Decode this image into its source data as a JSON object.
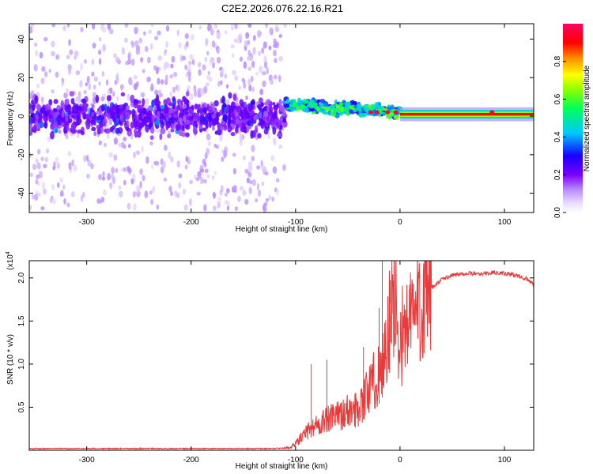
{
  "title": "C2E2.2026.076.22.16.R21",
  "colors": {
    "line": "#e83a3a",
    "axis": "#000000",
    "background": "#ffffff"
  },
  "chart_data": [
    {
      "type": "heatmap",
      "name": "spectrogram",
      "xlabel": "Height of straight line (km)",
      "ylabel": "Frequency (Hz)",
      "xlim": [
        -355,
        128
      ],
      "ylim": [
        -50,
        48
      ],
      "x_ticks": [
        -300,
        -200,
        -100,
        0,
        100
      ],
      "x_tick_labels": [
        "-300",
        "-200",
        "-100",
        "0",
        "100"
      ],
      "y_ticks": [
        -40,
        -20,
        0,
        20,
        40
      ],
      "y_tick_labels": [
        "-40",
        "-20",
        "0",
        "20",
        "40"
      ],
      "colorbar": {
        "label": "Normalized spectral amplitude",
        "range": [
          0,
          1
        ],
        "ticks": [
          0.0,
          0.2,
          0.4,
          0.6,
          0.8
        ],
        "tick_labels": [
          "0.0",
          "0.2",
          "0.4",
          "0.6",
          "0.8"
        ],
        "colormap": "rainbow (white-violet-blue-cyan-green-yellow-orange-red-magenta)"
      },
      "features": [
        {
          "region": "noise",
          "x_range": [
            -355,
            -130
          ],
          "freq_spread_hz": [
            -48,
            48
          ],
          "amplitude": 0.05
        },
        {
          "region": "main band",
          "x_range": [
            -355,
            -110
          ],
          "freq_center_hz": 0,
          "freq_halfwidth_hz": 12,
          "amplitude": 0.2
        },
        {
          "region": "transition",
          "x_range": [
            -110,
            0
          ],
          "freq_center_hz": 2,
          "freq_halfwidth_hz": 5,
          "amplitude": 0.45
        },
        {
          "region": "carrier",
          "x_range": [
            0,
            128
          ],
          "freq_center_hz": 1,
          "freq_halfwidth_hz": 1.5,
          "amplitude": 0.9
        }
      ]
    },
    {
      "type": "line",
      "name": "snr",
      "xlabel": "Height of straight line (km)",
      "ylabel": "SNR (10 * v/v)",
      "y_exponent_label": "(x10",
      "y_exponent": "4",
      "xlim": [
        -355,
        128
      ],
      "ylim": [
        0,
        2.2
      ],
      "x_ticks": [
        -300,
        -200,
        -100,
        0,
        100
      ],
      "x_tick_labels": [
        "-300",
        "-200",
        "-100",
        "0",
        "100"
      ],
      "y_ticks": [
        0.5,
        1.0,
        1.5,
        2.0
      ],
      "y_tick_labels": [
        "0.5",
        "1.0",
        "1.5",
        "2.0"
      ],
      "series": [
        {
          "name": "SNR",
          "x": [
            -355,
            -300,
            -250,
            -200,
            -150,
            -120,
            -105,
            -100,
            -90,
            -80,
            -70,
            -60,
            -50,
            -45,
            -40,
            -35,
            -30,
            -25,
            -20,
            -15,
            -12,
            -10,
            -5,
            0,
            10,
            20,
            30,
            40,
            50,
            60,
            70,
            80,
            90,
            100,
            110,
            120,
            128
          ],
          "y": [
            0.02,
            0.02,
            0.02,
            0.02,
            0.02,
            0.02,
            0.03,
            0.08,
            0.2,
            0.3,
            0.35,
            0.4,
            0.45,
            0.45,
            0.5,
            0.6,
            0.7,
            0.8,
            0.9,
            1.1,
            1.3,
            1.5,
            1.7,
            1.3,
            1.5,
            1.75,
            1.88,
            1.98,
            2.03,
            2.05,
            2.05,
            2.05,
            2.06,
            2.05,
            2.03,
            2.0,
            1.92
          ],
          "spikes": [
            {
              "x": -85,
              "y": 1.0
            },
            {
              "x": -70,
              "y": 1.05
            },
            {
              "x": -35,
              "y": 1.2
            },
            {
              "x": -20,
              "y": 1.65
            },
            {
              "x": -17,
              "y": 2.2
            },
            {
              "x": -10,
              "y": 1.75
            }
          ]
        }
      ]
    }
  ]
}
